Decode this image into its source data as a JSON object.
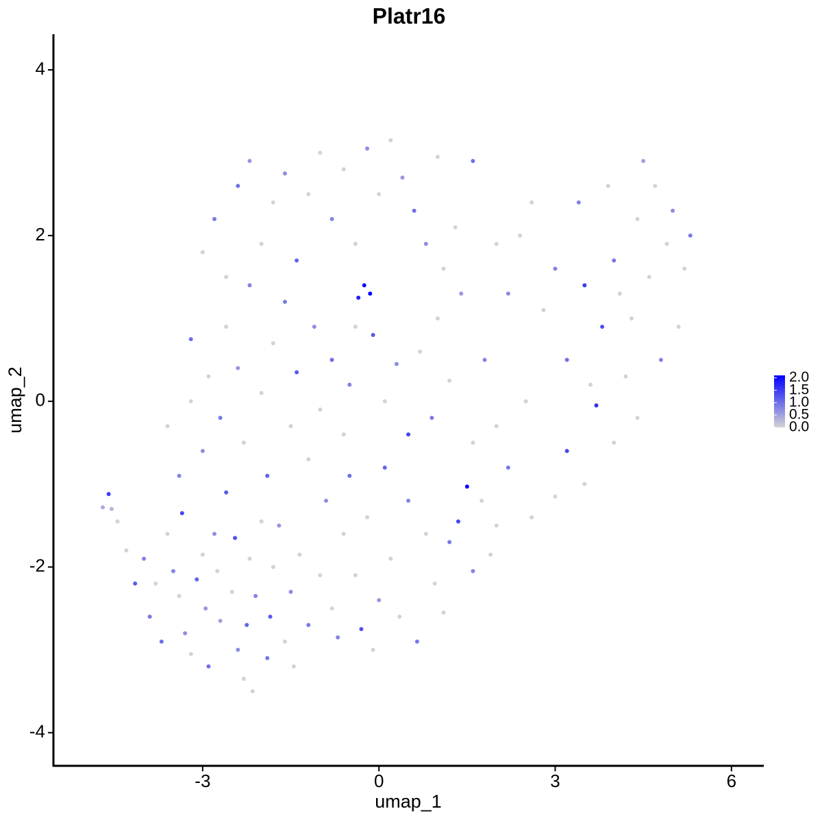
{
  "chart_data": {
    "type": "scatter",
    "title": "Platr16",
    "xlabel": "umap_1",
    "ylabel": "umap_2",
    "xlim": [
      -5.54,
      6.55
    ],
    "ylim": [
      -4.4,
      4.43
    ],
    "xticks": [
      -3,
      0,
      3,
      6
    ],
    "yticks": [
      -4,
      -2,
      0,
      2,
      4
    ],
    "grid": false,
    "color_low": "#d3d3d3",
    "color_high": "#0000ff",
    "clim": [
      0,
      2.1
    ],
    "colorbar_ticks": [
      {
        "value": 0,
        "label": "0.0"
      },
      {
        "value": 0.5,
        "label": "0.5"
      },
      {
        "value": 1,
        "label": "1.0"
      },
      {
        "value": 1.5,
        "label": "1.5"
      },
      {
        "value": 2,
        "label": "2.0"
      }
    ],
    "x": [
      -4.6,
      -4.7,
      -4.55,
      -4.45,
      -4.3,
      -4.15,
      -4.0,
      -3.9,
      -3.8,
      -3.7,
      -3.6,
      -3.5,
      -3.4,
      -3.35,
      -3.3,
      -3.2,
      -3.1,
      -3.0,
      -2.95,
      -2.9,
      -2.8,
      -2.75,
      -2.7,
      -2.6,
      -2.5,
      -2.45,
      -2.4,
      -2.3,
      -2.25,
      -2.2,
      -2.15,
      -2.1,
      -2.0,
      -1.9,
      -1.85,
      -1.8,
      -1.7,
      -1.6,
      -1.5,
      -1.45,
      -1.35,
      -1.2,
      -1.0,
      -0.9,
      -0.8,
      -0.7,
      -0.6,
      -0.5,
      -0.4,
      -0.3,
      -0.2,
      -0.1,
      0.0,
      0.1,
      0.2,
      0.35,
      0.5,
      0.65,
      0.8,
      0.95,
      1.1,
      1.2,
      1.35,
      1.5,
      1.6,
      1.75,
      1.9,
      2.0,
      -3.6,
      -3.4,
      -3.2,
      -3.0,
      -3.2,
      -2.9,
      -2.7,
      -2.6,
      -2.4,
      -2.3,
      -2.2,
      -2.0,
      -1.9,
      -1.8,
      -1.6,
      -1.5,
      -1.4,
      -1.2,
      -1.1,
      -1.0,
      -0.8,
      -0.6,
      -0.5,
      -0.4,
      -0.25,
      -0.15,
      -0.35,
      -0.1,
      0.1,
      0.3,
      0.5,
      0.7,
      0.9,
      1.0,
      1.2,
      1.4,
      1.6,
      1.8,
      2.0,
      -3.0,
      -2.8,
      -2.6,
      -2.4,
      -2.2,
      -2.0,
      -1.8,
      -1.6,
      -1.4,
      -1.2,
      -1.0,
      -0.8,
      -0.6,
      -0.4,
      -0.2,
      0.0,
      0.2,
      0.4,
      0.6,
      0.8,
      1.0,
      1.1,
      1.3,
      1.6,
      2.0,
      2.2,
      2.4,
      2.6,
      2.8,
      3.0,
      3.2,
      3.2,
      3.4,
      3.5,
      3.6,
      3.7,
      3.8,
      3.9,
      4.0,
      4.2,
      4.3,
      4.4,
      4.5,
      4.6,
      4.7,
      4.8,
      4.9,
      5.0,
      5.1,
      5.2,
      5.3,
      4.4,
      4.0,
      3.5,
      3.0,
      2.6,
      2.2,
      2.5,
      4.1
    ],
    "y": [
      -1.12,
      -1.28,
      -1.3,
      -1.45,
      -1.8,
      -2.2,
      -1.9,
      -2.6,
      -2.2,
      -2.9,
      -1.6,
      -2.05,
      -2.35,
      -1.35,
      -2.8,
      -3.05,
      -2.15,
      -1.85,
      -2.5,
      -3.2,
      -1.6,
      -2.05,
      -2.65,
      -1.1,
      -2.3,
      -1.65,
      -3.0,
      -3.35,
      -2.7,
      -1.9,
      -3.5,
      -2.35,
      -1.45,
      -3.1,
      -2.6,
      -2.0,
      -1.5,
      -2.9,
      -2.3,
      -3.2,
      -1.85,
      -2.7,
      -2.1,
      -1.2,
      -2.5,
      -2.85,
      -1.6,
      -0.9,
      -2.1,
      -2.75,
      -1.4,
      -3.0,
      -2.4,
      -0.8,
      -1.9,
      -2.6,
      -1.2,
      -2.9,
      -1.6,
      -2.2,
      -2.55,
      -1.7,
      -1.45,
      -1.03,
      -2.05,
      -1.2,
      -1.85,
      -1.5,
      -0.3,
      -0.9,
      0.0,
      -0.6,
      0.75,
      0.3,
      -0.2,
      0.9,
      0.4,
      -0.5,
      1.4,
      0.1,
      -0.9,
      0.7,
      1.2,
      -0.3,
      0.35,
      -0.7,
      0.9,
      -0.1,
      0.5,
      -0.4,
      0.2,
      0.9,
      1.4,
      1.3,
      1.25,
      0.8,
      0.0,
      0.45,
      -0.4,
      0.6,
      -0.2,
      1.0,
      0.25,
      1.3,
      -0.5,
      0.5,
      -0.3,
      1.8,
      2.2,
      1.5,
      2.6,
      2.9,
      1.9,
      2.4,
      2.75,
      1.7,
      2.5,
      3.0,
      2.2,
      2.8,
      1.9,
      3.05,
      2.5,
      3.15,
      2.7,
      2.3,
      1.9,
      2.95,
      1.6,
      2.1,
      2.9,
      1.9,
      1.3,
      2.0,
      2.4,
      1.1,
      1.6,
      0.5,
      -0.6,
      2.4,
      1.4,
      0.2,
      -0.05,
      0.9,
      2.6,
      1.7,
      0.3,
      1.0,
      2.2,
      2.9,
      1.5,
      2.6,
      0.5,
      1.9,
      2.3,
      0.9,
      1.6,
      2.0,
      -0.2,
      -0.5,
      -1.0,
      -1.15,
      -1.4,
      -0.8,
      0.0,
      1.3
    ],
    "values": [
      1.5,
      0.4,
      0.3,
      0,
      0,
      1.2,
      0.8,
      0.9,
      0,
      1.0,
      0,
      0.8,
      0,
      1.4,
      0.7,
      0,
      1.1,
      0,
      0.6,
      1.0,
      0.7,
      0,
      0.5,
      1.2,
      0,
      1.3,
      0.7,
      0,
      1.1,
      0,
      0,
      0.8,
      0,
      0.9,
      1.2,
      0,
      0.6,
      0,
      0.7,
      0,
      0,
      0.9,
      0,
      0.7,
      0,
      0.8,
      0,
      1.0,
      0,
      1.3,
      0,
      0,
      0.6,
      1.1,
      0,
      0,
      0.8,
      0.9,
      0,
      0,
      0,
      0.9,
      1.4,
      2.1,
      0.8,
      0,
      0,
      0,
      0,
      0.8,
      0,
      0.7,
      1.0,
      0,
      0.9,
      0,
      0.6,
      0,
      0.8,
      0,
      1.1,
      0,
      0.9,
      0,
      1.2,
      0,
      0.7,
      0,
      1.0,
      0,
      0.8,
      0,
      2.0,
      2.1,
      1.8,
      1.2,
      0,
      0.7,
      1.4,
      0,
      0.9,
      0,
      0,
      0.6,
      0,
      0.8,
      0,
      0,
      0.9,
      0,
      1.0,
      0.6,
      0,
      0,
      0.7,
      1.1,
      0,
      0,
      0.8,
      0,
      0,
      0.7,
      0,
      0,
      0.6,
      1.0,
      0.7,
      0,
      0,
      0,
      1.0,
      0,
      0.7,
      0,
      0,
      0,
      0.8,
      1.0,
      1.4,
      0.8,
      1.5,
      0,
      1.6,
      1.3,
      0,
      0.9,
      0,
      0,
      0,
      0.5,
      0,
      0,
      0.8,
      0,
      0.7,
      0,
      0,
      0.9,
      0,
      0,
      0,
      0,
      0,
      0.9,
      0,
      0
    ]
  }
}
